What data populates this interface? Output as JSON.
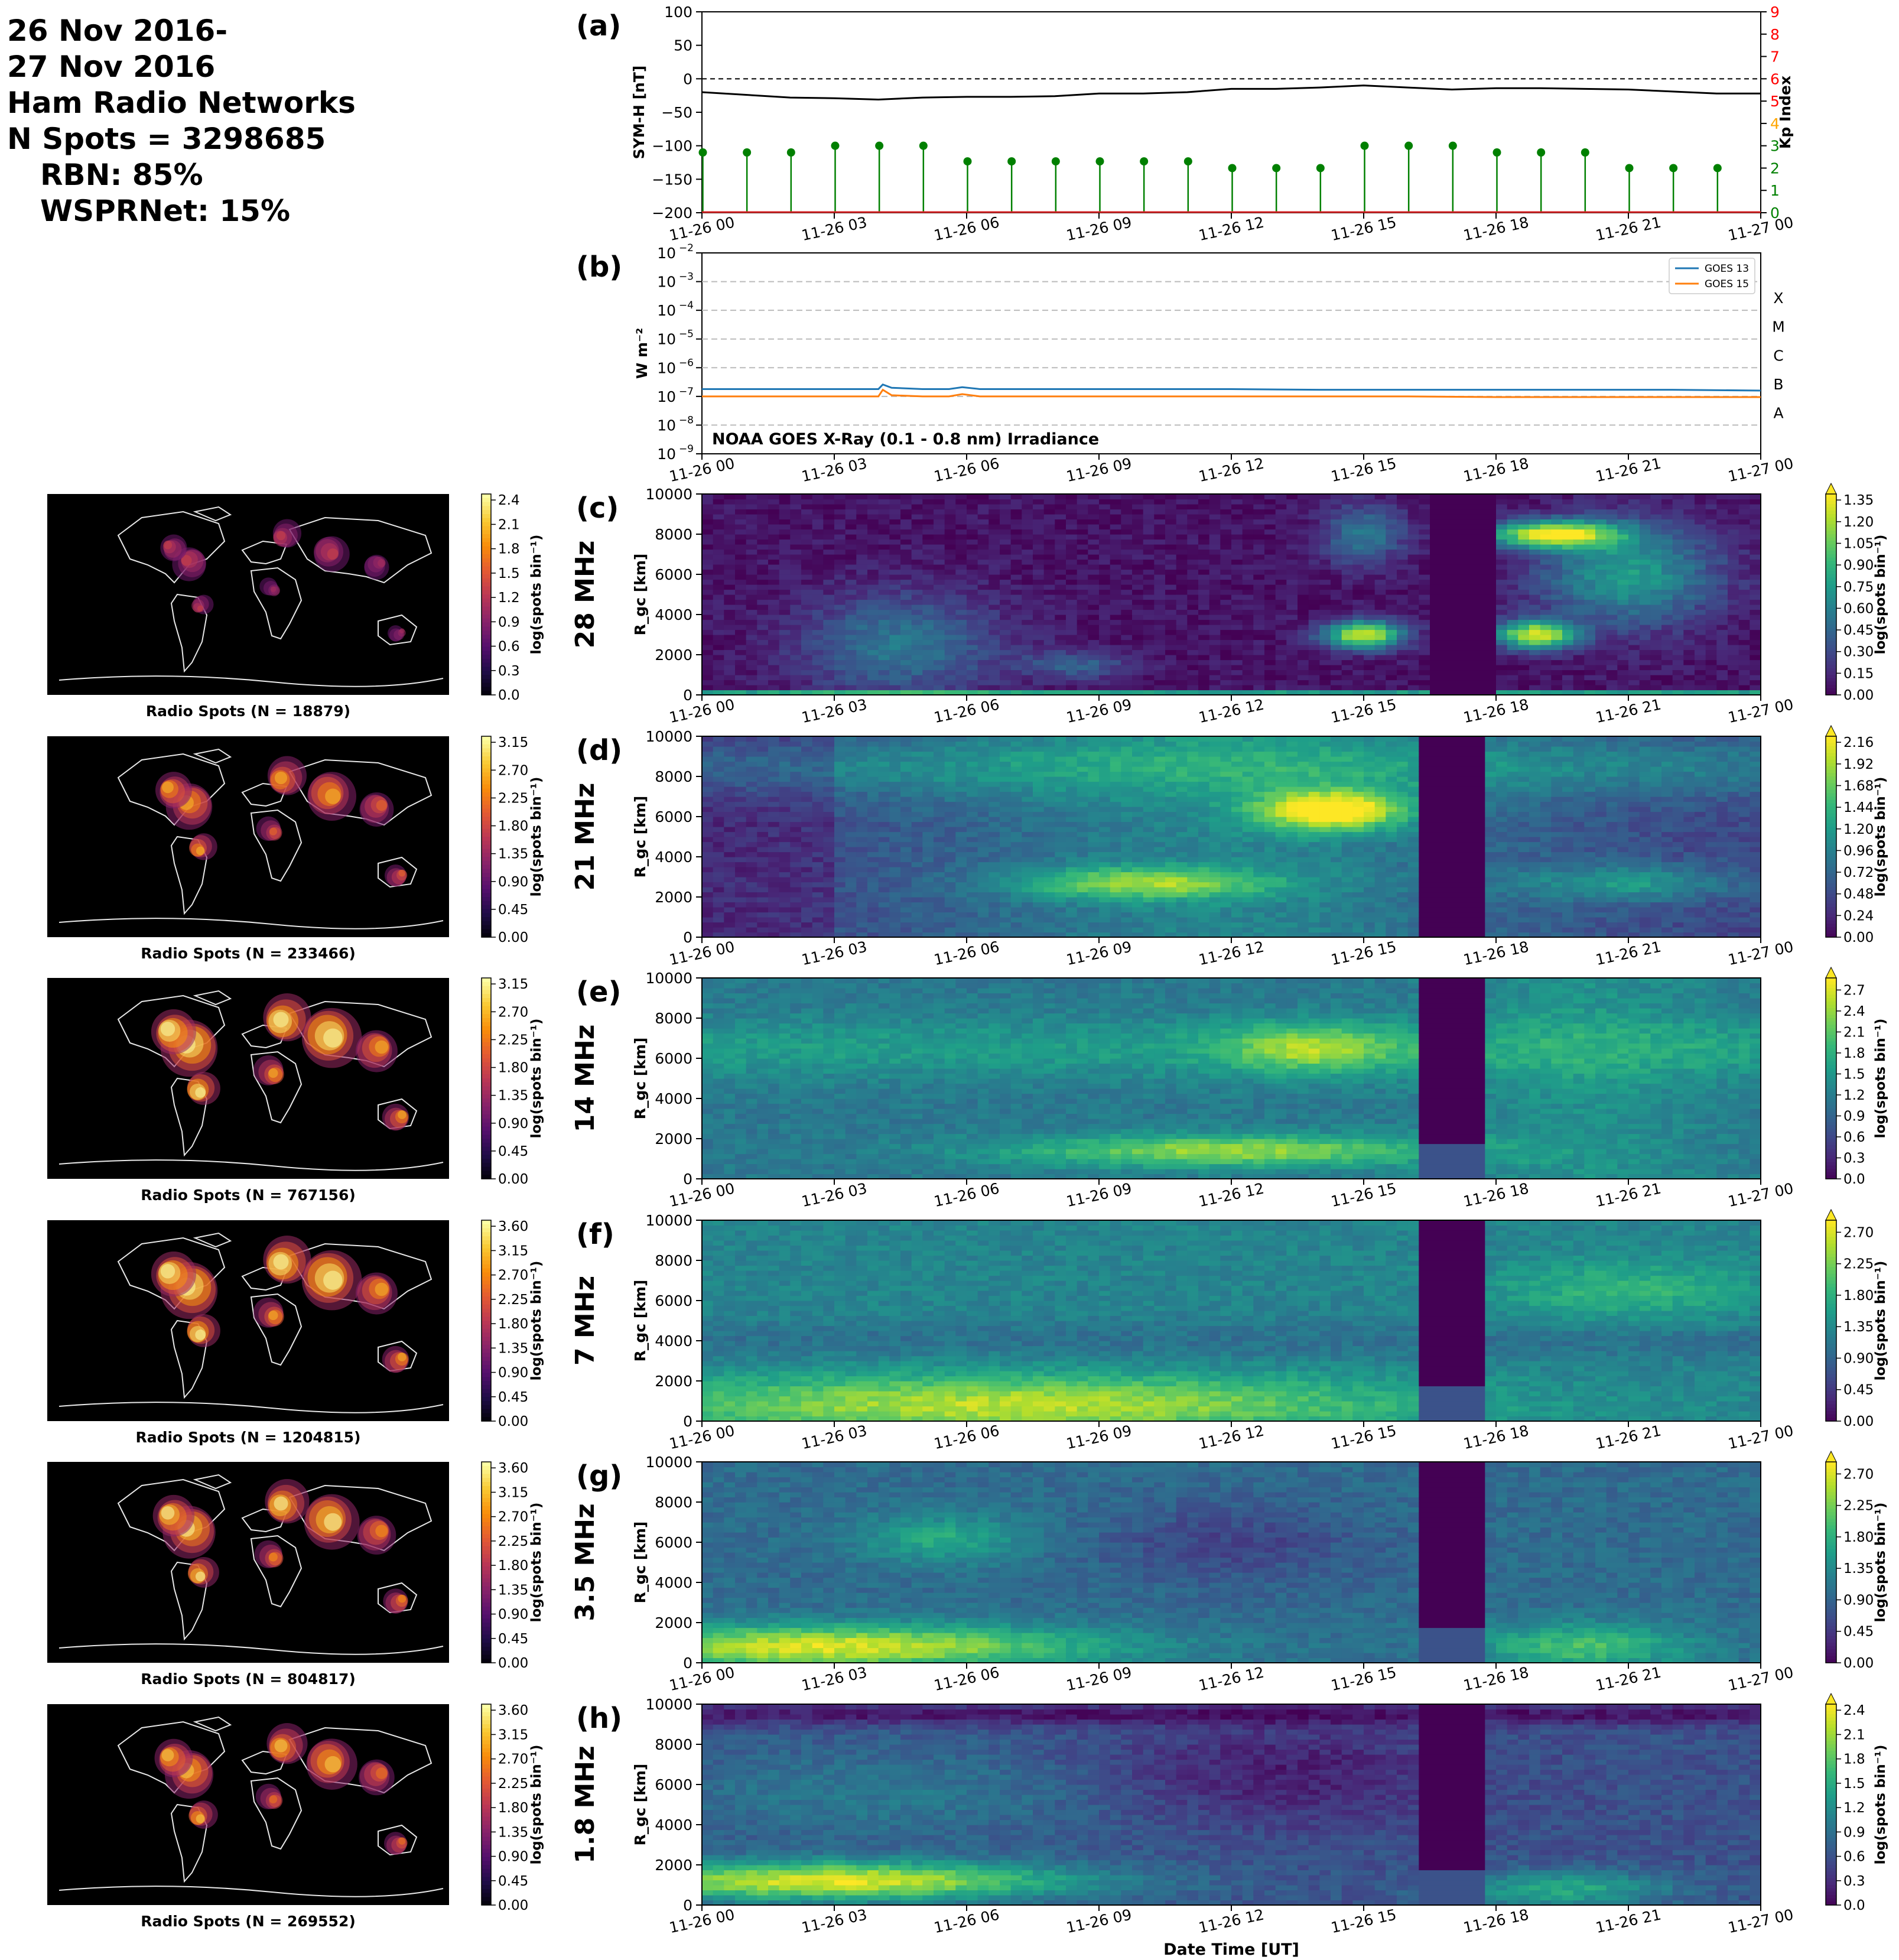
{
  "header": {
    "line1": "26 Nov 2016-",
    "line2": "27 Nov 2016",
    "line3": "Ham Radio Networks",
    "line4": "N Spots = 3298685",
    "line5": "RBN: 85%",
    "line6": "WSPRNet: 15%"
  },
  "time_ticks": [
    "11-26 00",
    "11-26 03",
    "11-26 06",
    "11-26 09",
    "11-26 12",
    "11-26 15",
    "11-26 18",
    "11-26 21",
    "11-27 00"
  ],
  "xlabel": "Date Time [UT]",
  "chart_data": [
    {
      "id": "a",
      "type": "line",
      "panel_label": "(a)",
      "ylabel": "SYM-H [nT]",
      "ylim": [
        -200,
        100
      ],
      "yticks": [
        "100",
        "50",
        "0",
        "−50",
        "−100",
        "−150",
        "−200"
      ],
      "y2label": "Kp Index",
      "y2lim": [
        0,
        9
      ],
      "y2ticks": [
        "0",
        "1",
        "2",
        "3",
        "4",
        "5",
        "6",
        "7",
        "8",
        "9"
      ],
      "y2tick_colors": [
        "#008000",
        "#008000",
        "#008000",
        "#008000",
        "#ffa500",
        "#ff0000",
        "#ff0000",
        "#ff0000",
        "#ff0000",
        "#ff0000"
      ],
      "symh": {
        "x_hours": [
          0,
          1,
          2,
          3,
          4,
          5,
          6,
          7,
          8,
          9,
          10,
          11,
          12,
          13,
          14,
          15,
          16,
          17,
          18,
          19,
          20,
          21,
          22,
          23,
          24
        ],
        "values": [
          -20,
          -24,
          -28,
          -29,
          -31,
          -28,
          -27,
          -27,
          -26,
          -22,
          -22,
          -20,
          -15,
          -15,
          -13,
          -10,
          -13,
          -16,
          -14,
          -14,
          -15,
          -16,
          -19,
          -22,
          -22
        ]
      },
      "kp": {
        "x_hours": [
          0,
          1,
          2,
          3,
          4,
          5,
          6,
          7,
          8,
          9,
          10,
          11,
          12,
          13,
          14,
          15,
          16,
          17,
          18,
          19,
          20,
          21,
          22,
          23
        ],
        "values": [
          2.7,
          2.7,
          2.7,
          3,
          3,
          3,
          2.3,
          2.3,
          2.3,
          2.3,
          2.3,
          2.3,
          2,
          2,
          2,
          3,
          3,
          3,
          2.7,
          2.7,
          2.7,
          2,
          2,
          2
        ]
      },
      "colors": {
        "symh": "#000000",
        "kp": "#008000"
      }
    },
    {
      "id": "b",
      "type": "line",
      "panel_label": "(b)",
      "ylabel": "W m⁻²",
      "yscale": "log",
      "ylim": [
        1e-09,
        0.01
      ],
      "ytick_exponents": [
        "−2",
        "−3",
        "−4",
        "−5",
        "−6",
        "−7",
        "−8",
        "−9"
      ],
      "flare_classes": [
        "X",
        "M",
        "C",
        "B",
        "A"
      ],
      "annotation": "NOAA GOES X-Ray (0.1 - 0.8 nm) Irradiance",
      "series": [
        {
          "name": "GOES 13",
          "color": "#1f77b4",
          "x_hours": [
            0,
            2,
            4,
            4.1,
            4.3,
            5,
            5.6,
            5.9,
            6.3,
            8,
            10,
            12,
            14,
            16,
            18,
            20,
            22,
            24
          ],
          "values": [
            1.8e-07,
            1.8e-07,
            1.8e-07,
            2.6e-07,
            2e-07,
            1.8e-07,
            1.8e-07,
            2.1e-07,
            1.8e-07,
            1.8e-07,
            1.8e-07,
            1.8e-07,
            1.7e-07,
            1.7e-07,
            1.7e-07,
            1.7e-07,
            1.7e-07,
            1.6e-07
          ]
        },
        {
          "name": "GOES 15",
          "color": "#ff7f0e",
          "x_hours": [
            0,
            2,
            4,
            4.1,
            4.3,
            5,
            5.6,
            5.9,
            6.3,
            8,
            10,
            12,
            14,
            16,
            18,
            20,
            22,
            24
          ],
          "values": [
            1e-07,
            1e-07,
            1e-07,
            1.7e-07,
            1.1e-07,
            1e-07,
            1e-07,
            1.2e-07,
            1e-07,
            1e-07,
            1e-07,
            1e-07,
            1e-07,
            1e-07,
            9.5e-08,
            9.5e-08,
            9.5e-08,
            9.5e-08
          ]
        }
      ]
    },
    {
      "id": "c",
      "type": "heatmap",
      "panel_label": "(c)",
      "band": "28 MHz",
      "ylabel": "R_gc [km]",
      "ylim": [
        0,
        10000
      ],
      "yticks": [
        "10000",
        "8000",
        "6000",
        "4000",
        "2000",
        "0"
      ],
      "cbar_label": "log(spots bin⁻¹)",
      "cbar_max": 1.35,
      "cbar_ticks": [
        "1.35",
        "1.20",
        "1.05",
        "0.90",
        "0.75",
        "0.60",
        "0.45",
        "0.30",
        "0.15",
        "0.00"
      ],
      "map_label": "Radio Spots (N = 18879)",
      "map_cbar_max": 2.4,
      "map_ticks": [
        "2.4",
        "2.1",
        "1.8",
        "1.5",
        "1.2",
        "0.9",
        "0.6",
        "0.3",
        "0.0"
      ],
      "gap_hours": [
        16.5,
        18
      ]
    },
    {
      "id": "d",
      "type": "heatmap",
      "panel_label": "(d)",
      "band": "21 MHz",
      "ylabel": "R_gc [km]",
      "ylim": [
        0,
        10000
      ],
      "yticks": [
        "10000",
        "8000",
        "6000",
        "4000",
        "2000",
        "0"
      ],
      "cbar_label": "log(spots bin⁻¹)",
      "cbar_max": 2.16,
      "cbar_ticks": [
        "2.16",
        "1.92",
        "1.68",
        "1.44",
        "1.20",
        "0.96",
        "0.72",
        "0.48",
        "0.24",
        "0.00"
      ],
      "map_label": "Radio Spots (N = 233466)",
      "map_cbar_max": 3.15,
      "map_ticks": [
        "3.15",
        "2.70",
        "2.25",
        "1.80",
        "1.35",
        "0.90",
        "0.45",
        "0.00"
      ],
      "gap_hours": [
        16.2,
        17.7
      ]
    },
    {
      "id": "e",
      "type": "heatmap",
      "panel_label": "(e)",
      "band": "14 MHz",
      "ylabel": "R_gc [km]",
      "ylim": [
        0,
        10000
      ],
      "yticks": [
        "10000",
        "8000",
        "6000",
        "4000",
        "2000",
        "0"
      ],
      "cbar_label": "log(spots bin⁻¹)",
      "cbar_max": 2.7,
      "cbar_ticks": [
        "2.7",
        "2.4",
        "2.1",
        "1.8",
        "1.5",
        "1.2",
        "0.9",
        "0.6",
        "0.3",
        "0.0"
      ],
      "map_label": "Radio Spots (N = 767156)",
      "map_cbar_max": 3.15,
      "map_ticks": [
        "3.15",
        "2.70",
        "2.25",
        "1.80",
        "1.35",
        "0.90",
        "0.45",
        "0.00"
      ],
      "gap_hours": [
        16.2,
        17.7
      ]
    },
    {
      "id": "f",
      "type": "heatmap",
      "panel_label": "(f)",
      "band": "7 MHz",
      "ylabel": "R_gc [km]",
      "ylim": [
        0,
        10000
      ],
      "yticks": [
        "10000",
        "8000",
        "6000",
        "4000",
        "2000",
        "0"
      ],
      "cbar_label": "log(spots bin⁻¹)",
      "cbar_max": 2.7,
      "cbar_ticks": [
        "2.70",
        "2.25",
        "1.80",
        "1.35",
        "0.90",
        "0.45",
        "0.00"
      ],
      "map_label": "Radio Spots (N = 1204815)",
      "map_cbar_max": 3.6,
      "map_ticks": [
        "3.60",
        "3.15",
        "2.70",
        "2.25",
        "1.80",
        "1.35",
        "0.90",
        "0.45",
        "0.00"
      ],
      "gap_hours": [
        16.2,
        17.7
      ]
    },
    {
      "id": "g",
      "type": "heatmap",
      "panel_label": "(g)",
      "band": "3.5 MHz",
      "ylabel": "R_gc [km]",
      "ylim": [
        0,
        10000
      ],
      "yticks": [
        "10000",
        "8000",
        "6000",
        "4000",
        "2000",
        "0"
      ],
      "cbar_label": "log(spots bin⁻¹)",
      "cbar_max": 2.7,
      "cbar_ticks": [
        "2.70",
        "2.25",
        "1.80",
        "1.35",
        "0.90",
        "0.45",
        "0.00"
      ],
      "map_label": "Radio Spots (N = 804817)",
      "map_cbar_max": 3.6,
      "map_ticks": [
        "3.60",
        "3.15",
        "2.70",
        "2.25",
        "1.80",
        "1.35",
        "0.90",
        "0.45",
        "0.00"
      ],
      "gap_hours": [
        16.2,
        17.7
      ]
    },
    {
      "id": "h",
      "type": "heatmap",
      "panel_label": "(h)",
      "band": "1.8 MHz",
      "ylabel": "R_gc [km]",
      "ylim": [
        0,
        10000
      ],
      "yticks": [
        "10000",
        "8000",
        "6000",
        "4000",
        "2000",
        "0"
      ],
      "cbar_label": "log(spots bin⁻¹)",
      "cbar_max": 2.4,
      "cbar_ticks": [
        "2.4",
        "2.1",
        "1.8",
        "1.5",
        "1.2",
        "0.9",
        "0.6",
        "0.3",
        "0.0"
      ],
      "map_label": "Radio Spots (N = 269552)",
      "map_cbar_max": 3.6,
      "map_ticks": [
        "3.60",
        "3.15",
        "2.70",
        "2.25",
        "1.80",
        "1.35",
        "0.90",
        "0.45",
        "0.00"
      ],
      "gap_hours": [
        16.2,
        17.7
      ]
    }
  ]
}
